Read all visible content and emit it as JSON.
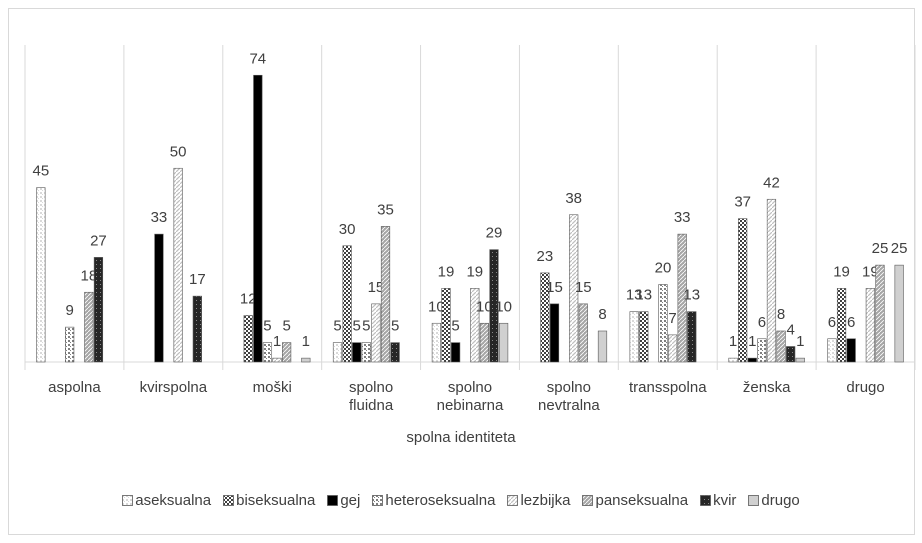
{
  "chart_data": {
    "type": "bar",
    "x_label": "spolna identiteta",
    "categories": [
      "aspolna",
      "kvirspolna",
      "moški",
      "spolno fluidna",
      "spolno nebinarna",
      "spolno nevtralna",
      "transspolna",
      "ženska",
      "drugo"
    ],
    "series": [
      {
        "name": "aseksualna",
        "color": "#d9d9d9",
        "pattern": "dots",
        "values": [
          45,
          null,
          null,
          5,
          10,
          null,
          13,
          1,
          6
        ]
      },
      {
        "name": "biseksualna",
        "color": "#404040",
        "pattern": "checker",
        "values": [
          null,
          null,
          12,
          30,
          19,
          23,
          13,
          37,
          19
        ]
      },
      {
        "name": "gej",
        "color": "#000000",
        "pattern": "solid",
        "values": [
          null,
          33,
          74,
          5,
          5,
          15,
          null,
          1,
          6
        ]
      },
      {
        "name": "heteroseksualna",
        "color": "#7f7f7f",
        "pattern": "dots",
        "values": [
          9,
          null,
          5,
          5,
          null,
          null,
          20,
          6,
          null
        ]
      },
      {
        "name": "lezbijka",
        "color": "#bfbfbf",
        "pattern": "diagonal",
        "values": [
          null,
          50,
          1,
          15,
          19,
          38,
          7,
          42,
          19
        ]
      },
      {
        "name": "panseksualna",
        "color": "#a6a6a6",
        "pattern": "hatch",
        "values": [
          18,
          null,
          5,
          35,
          10,
          15,
          33,
          8,
          25
        ]
      },
      {
        "name": "kvir",
        "color": "#262626",
        "pattern": "dense",
        "values": [
          27,
          17,
          null,
          5,
          29,
          null,
          13,
          4,
          null
        ]
      },
      {
        "name": "drugo",
        "color": "#d0d0d0",
        "pattern": "solid",
        "values": [
          null,
          null,
          1,
          null,
          10,
          8,
          null,
          1,
          25
        ]
      }
    ],
    "ylim": [
      0,
      80
    ],
    "grid": true,
    "legend": "bottom"
  }
}
